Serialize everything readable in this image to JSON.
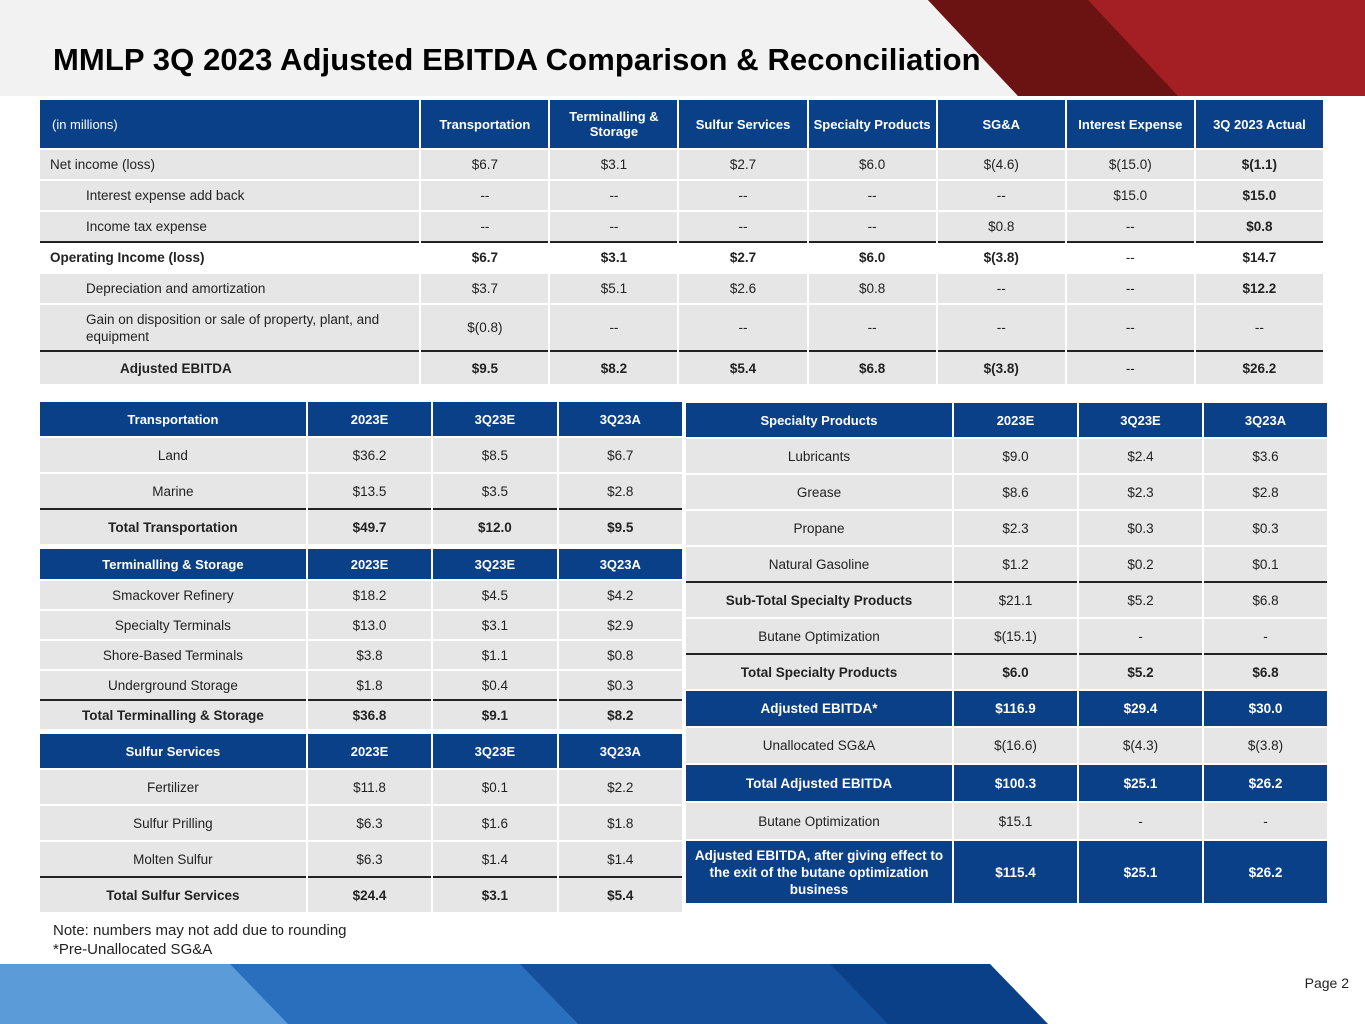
{
  "title": "MMLP 3Q 2023 Adjusted EBITDA Comparison & Reconciliation",
  "colors": {
    "navy": "#0a4087",
    "red": "#a31f24",
    "dark_red": "#6b1212",
    "row": "#e6e6e6"
  },
  "recon": {
    "headers": [
      "(in millions)",
      "Transportation",
      "Terminalling & Storage",
      "Sulfur Services",
      "Specialty Products",
      "SG&A",
      "Interest Expense",
      "3Q 2023 Actual"
    ],
    "rows": [
      {
        "label": "Net income (loss)",
        "values": [
          "$6.7",
          "$3.1",
          "$2.7",
          "$6.0",
          "$(4.6)",
          "$(15.0)",
          "$(1.1)"
        ]
      },
      {
        "label": "Interest expense add back",
        "values": [
          "--",
          "--",
          "--",
          "--",
          "--",
          "$15.0",
          "$15.0"
        ]
      },
      {
        "label": "Income tax expense",
        "values": [
          "--",
          "--",
          "--",
          "--",
          "$0.8",
          "--",
          "$0.8"
        ]
      },
      {
        "label": "Operating Income (loss)",
        "values": [
          "$6.7",
          "$3.1",
          "$2.7",
          "$6.0",
          "$(3.8)",
          "--",
          "$14.7"
        ]
      },
      {
        "label": "Depreciation and amortization",
        "values": [
          "$3.7",
          "$5.1",
          "$2.6",
          "$0.8",
          "--",
          "--",
          "$12.2"
        ]
      },
      {
        "label": "Gain on disposition or sale of property, plant, and equipment",
        "values": [
          "$(0.8)",
          "--",
          "--",
          "--",
          "--",
          "--",
          "--"
        ]
      },
      {
        "label": "Adjusted EBITDA",
        "values": [
          "$9.5",
          "$8.2",
          "$5.4",
          "$6.8",
          "$(3.8)",
          "--",
          "$26.2"
        ]
      }
    ]
  },
  "transport": {
    "headers": [
      "Transportation",
      "2023E",
      "3Q23E",
      "3Q23A"
    ],
    "rows": [
      {
        "label": "Land",
        "values": [
          "$36.2",
          "$8.5",
          "$6.7"
        ]
      },
      {
        "label": "Marine",
        "values": [
          "$13.5",
          "$3.5",
          "$2.8"
        ]
      },
      {
        "label": "Total Transportation",
        "values": [
          "$49.7",
          "$12.0",
          "$9.5"
        ]
      }
    ]
  },
  "terminal": {
    "headers": [
      "Terminalling & Storage",
      "2023E",
      "3Q23E",
      "3Q23A"
    ],
    "rows": [
      {
        "label": "Smackover Refinery",
        "values": [
          "$18.2",
          "$4.5",
          "$4.2"
        ]
      },
      {
        "label": "Specialty Terminals",
        "values": [
          "$13.0",
          "$3.1",
          "$2.9"
        ]
      },
      {
        "label": "Shore-Based Terminals",
        "values": [
          "$3.8",
          "$1.1",
          "$0.8"
        ]
      },
      {
        "label": "Underground Storage",
        "values": [
          "$1.8",
          "$0.4",
          "$0.3"
        ]
      },
      {
        "label": "Total Terminalling & Storage",
        "values": [
          "$36.8",
          "$9.1",
          "$8.2"
        ]
      }
    ]
  },
  "sulfur": {
    "headers": [
      "Sulfur Services",
      "2023E",
      "3Q23E",
      "3Q23A"
    ],
    "rows": [
      {
        "label": "Fertilizer",
        "values": [
          "$11.8",
          "$0.1",
          "$2.2"
        ]
      },
      {
        "label": "Sulfur Prilling",
        "values": [
          "$6.3",
          "$1.6",
          "$1.8"
        ]
      },
      {
        "label": "Molten Sulfur",
        "values": [
          "$6.3",
          "$1.4",
          "$1.4"
        ]
      },
      {
        "label": "Total Sulfur Services",
        "values": [
          "$24.4",
          "$3.1",
          "$5.4"
        ]
      }
    ]
  },
  "specialty": {
    "headers": [
      "Specialty Products",
      "2023E",
      "3Q23E",
      "3Q23A"
    ],
    "rows": [
      {
        "label": "Lubricants",
        "values": [
          "$9.0",
          "$2.4",
          "$3.6"
        ]
      },
      {
        "label": "Grease",
        "values": [
          "$8.6",
          "$2.3",
          "$2.8"
        ]
      },
      {
        "label": "Propane",
        "values": [
          "$2.3",
          "$0.3",
          "$0.3"
        ]
      },
      {
        "label": "Natural Gasoline",
        "values": [
          "$1.2",
          "$0.2",
          "$0.1"
        ]
      },
      {
        "label": "Sub-Total Specialty Products",
        "values": [
          "$21.1",
          "$5.2",
          "$6.8"
        ]
      },
      {
        "label": "Butane Optimization",
        "values": [
          "$(15.1)",
          "-",
          "-"
        ]
      },
      {
        "label": "Total Specialty Products",
        "values": [
          "$6.0",
          "$5.2",
          "$6.8"
        ]
      },
      {
        "label": "Adjusted EBITDA*",
        "values": [
          "$116.9",
          "$29.4",
          "$30.0"
        ]
      },
      {
        "label": "Unallocated SG&A",
        "values": [
          "$(16.6)",
          "$(4.3)",
          "$(3.8)"
        ]
      },
      {
        "label": "Total Adjusted EBITDA",
        "values": [
          "$100.3",
          "$25.1",
          "$26.2"
        ]
      },
      {
        "label": "Butane Optimization",
        "values": [
          "$15.1",
          "-",
          "-"
        ]
      },
      {
        "label": "Adjusted EBITDA, after giving effect to the exit of the butane optimization business",
        "values": [
          "$115.4",
          "$25.1",
          "$26.2"
        ]
      }
    ]
  },
  "notes": [
    "Note: numbers may not add due to rounding",
    "*Pre-Unallocated SG&A"
  ],
  "page_label": "Page 2"
}
